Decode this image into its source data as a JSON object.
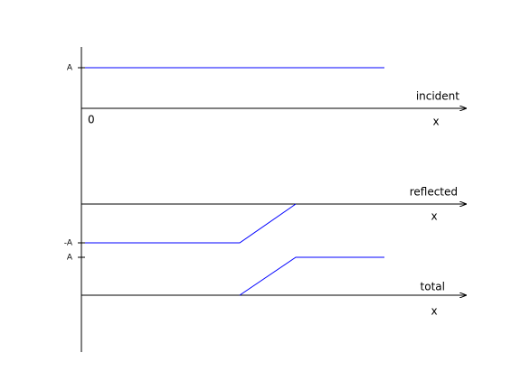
{
  "panels": [
    {
      "label": "incident",
      "tick_label": "A",
      "origin_label": "0",
      "x_label": "x"
    },
    {
      "label": "reflected",
      "tick_label": "-A",
      "x_label": "x"
    },
    {
      "label": "total",
      "tick_label": "A",
      "x_label": "x"
    }
  ]
}
